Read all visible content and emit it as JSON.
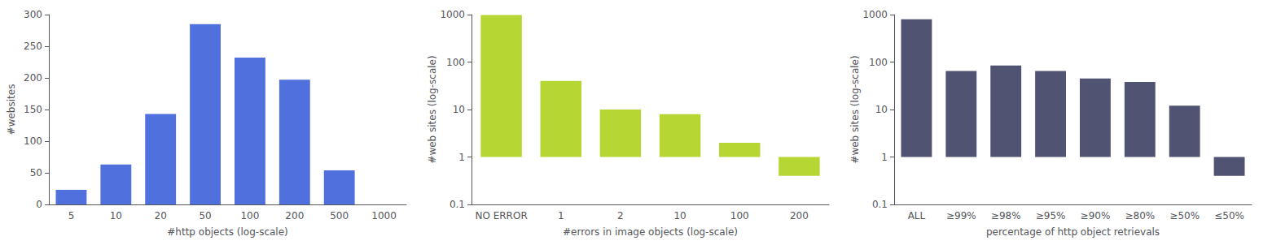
{
  "chart_data": [
    {
      "type": "bar",
      "xlabel": "#http objects (log-scale)",
      "ylabel": "#websites",
      "categories": [
        "5",
        "10",
        "20",
        "50",
        "100",
        "200",
        "500",
        "1000"
      ],
      "values": [
        23,
        63,
        143,
        285,
        232,
        197,
        54,
        0
      ],
      "ylim": [
        0,
        300
      ],
      "yticks": [
        0,
        50,
        100,
        150,
        200,
        250,
        300
      ],
      "grid": false
    },
    {
      "type": "bar",
      "xlabel": "#errors in image objects (log-scale)",
      "ylabel": "#web sites (log-scale)",
      "categories": [
        "NO ERROR",
        "1",
        "2",
        "10",
        "100",
        "200"
      ],
      "values": [
        980,
        40,
        10,
        8,
        2,
        0.4
      ],
      "log": "y",
      "ylim": [
        0.1,
        1000
      ],
      "yticks": [
        0.1,
        1,
        10,
        100,
        1000
      ],
      "grid": false
    },
    {
      "type": "bar",
      "xlabel": "percentage of http object retrievals",
      "ylabel": "#web sites (log-scale)",
      "categories": [
        "ALL",
        "≥99%",
        "≥98%",
        "≥95%",
        "≥90%",
        "≥80%",
        "≥50%",
        "≤50%"
      ],
      "values": [
        800,
        65,
        85,
        65,
        45,
        38,
        12,
        0.4
      ],
      "log": "y",
      "ylim": [
        0.1,
        1000
      ],
      "yticks": [
        0.1,
        1,
        10,
        100,
        1000
      ],
      "grid": false
    }
  ]
}
